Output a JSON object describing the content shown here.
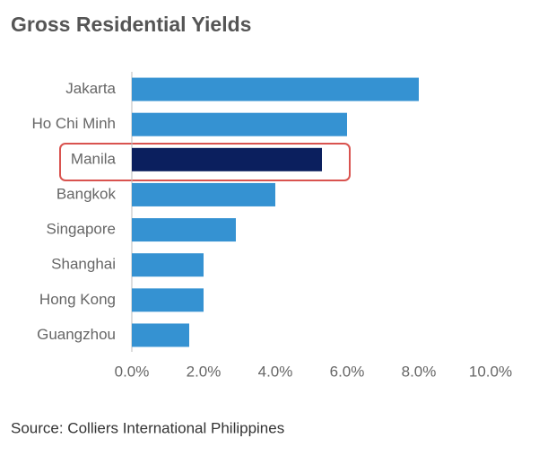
{
  "chart_data": {
    "type": "barh",
    "title": "Gross Residential Yields",
    "categories": [
      "Jakarta",
      "Ho Chi Minh",
      "Manila",
      "Bangkok",
      "Singapore",
      "Shanghai",
      "Hong Kong",
      "Guangzhou"
    ],
    "values": [
      8.0,
      6.0,
      5.3,
      4.0,
      2.9,
      2.0,
      2.0,
      1.6
    ],
    "colors": [
      "#3592d2",
      "#3592d2",
      "#0b1f5e",
      "#3592d2",
      "#3592d2",
      "#3592d2",
      "#3592d2",
      "#3592d2"
    ],
    "xlim": [
      0,
      10
    ],
    "xticks": [
      {
        "value": 0,
        "label": "0.0%"
      },
      {
        "value": 2,
        "label": "2.0%"
      },
      {
        "value": 4,
        "label": "4.0%"
      },
      {
        "value": 6,
        "label": "6.0%"
      },
      {
        "value": 8,
        "label": "8.0%"
      },
      {
        "value": 10,
        "label": "10.0%"
      }
    ],
    "grid": false,
    "source": "Source: Colliers International Philippines"
  }
}
